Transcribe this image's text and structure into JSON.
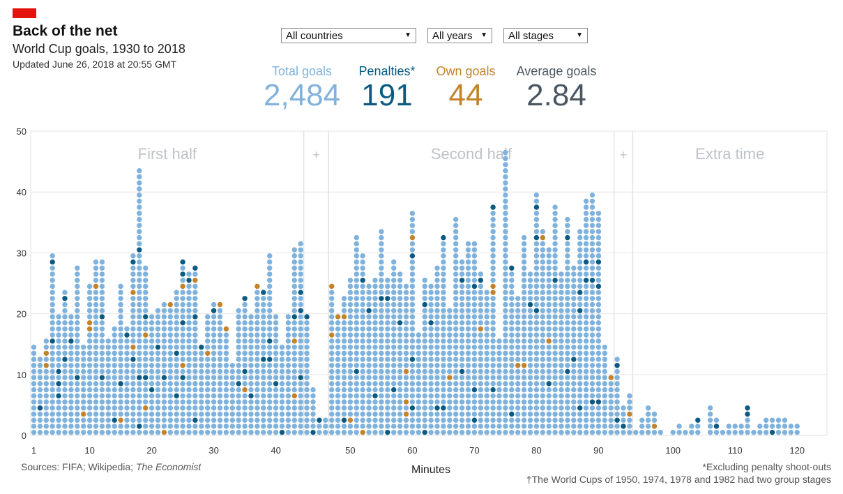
{
  "header": {
    "title": "Back of the net",
    "subtitle": "World Cup goals, 1930 to 2018",
    "updated": "Updated June 26, 2018 at 20:55 GMT"
  },
  "filters": {
    "countries": "All countries",
    "years": "All years",
    "stages": "All stages"
  },
  "stats": {
    "total_label": "Total goals",
    "total_value": "2,484",
    "penalties_label": "Penalties*",
    "penalties_value": "191",
    "own_label": "Own goals",
    "own_value": "44",
    "avg_label": "Average goals",
    "avg_value": "2.84"
  },
  "colors": {
    "regular": "#7fb2dc",
    "penalty": "#0a5a82",
    "own_goal": "#c2832a",
    "brand": "#e3120b"
  },
  "footer": {
    "sources_prefix": "Sources: FIFA; Wikipedia; ",
    "sources_italic": "The Economist",
    "note1": "*Excluding penalty shoot-outs",
    "note2": "†The World Cups of 1950, 1974, 1978 and 1982 had two group stages"
  },
  "chart_data": {
    "type": "scatter",
    "xlabel": "Minutes",
    "ylabel": "",
    "ylim": [
      0,
      50
    ],
    "yticks": [
      0,
      10,
      20,
      30,
      40,
      50
    ],
    "xticks": [
      1,
      10,
      20,
      30,
      40,
      50,
      60,
      70,
      80,
      90,
      100,
      110,
      120
    ],
    "grid": true,
    "sections": [
      {
        "label": "First half",
        "from": 1,
        "to": 45
      },
      {
        "label": "+",
        "from": 45,
        "to": 47
      },
      {
        "label": "Second half",
        "from": 47,
        "to": 91
      },
      {
        "label": "+",
        "from": 91,
        "to": 94
      },
      {
        "label": "Extra time",
        "from": 94,
        "to": 121
      }
    ],
    "goals_per_minute": [
      {
        "minute": "1",
        "total": 15,
        "penalties": [],
        "own_goals": []
      },
      {
        "minute": "2",
        "total": 13,
        "penalties": [
          5
        ],
        "own_goals": []
      },
      {
        "minute": "3",
        "total": 16,
        "penalties": [],
        "own_goals": [
          12,
          14
        ]
      },
      {
        "minute": "4",
        "total": 30,
        "penalties": [
          16,
          29
        ],
        "own_goals": []
      },
      {
        "minute": "5",
        "total": 20,
        "penalties": [
          7,
          9,
          11
        ],
        "own_goals": []
      },
      {
        "minute": "6",
        "total": 24,
        "penalties": [
          13,
          23
        ],
        "own_goals": []
      },
      {
        "minute": "7",
        "total": 20,
        "penalties": [
          16
        ],
        "own_goals": []
      },
      {
        "minute": "8",
        "total": 28,
        "penalties": [
          10
        ],
        "own_goals": []
      },
      {
        "minute": "9",
        "total": 15,
        "penalties": [],
        "own_goals": [
          4
        ]
      },
      {
        "minute": "10",
        "total": 25,
        "penalties": [],
        "own_goals": [
          18,
          19
        ]
      },
      {
        "minute": "11",
        "total": 29,
        "penalties": [],
        "own_goals": [
          25
        ]
      },
      {
        "minute": "12",
        "total": 29,
        "penalties": [
          10,
          20
        ],
        "own_goals": []
      },
      {
        "minute": "13",
        "total": 16,
        "penalties": [],
        "own_goals": []
      },
      {
        "minute": "14",
        "total": 18,
        "penalties": [
          3
        ],
        "own_goals": []
      },
      {
        "minute": "15",
        "total": 25,
        "penalties": [
          9
        ],
        "own_goals": [
          3
        ]
      },
      {
        "minute": "16",
        "total": 18,
        "penalties": [
          17
        ],
        "own_goals": []
      },
      {
        "minute": "17",
        "total": 30,
        "penalties": [
          13,
          29
        ],
        "own_goals": [
          15,
          24
        ]
      },
      {
        "minute": "18",
        "total": 44,
        "penalties": [
          2,
          10,
          31
        ],
        "own_goals": []
      },
      {
        "minute": "19",
        "total": 28,
        "penalties": [
          10,
          20
        ],
        "own_goals": [
          5,
          17
        ]
      },
      {
        "minute": "20",
        "total": 20,
        "penalties": [
          8
        ],
        "own_goals": []
      },
      {
        "minute": "21",
        "total": 21,
        "penalties": [
          15
        ],
        "own_goals": []
      },
      {
        "minute": "22",
        "total": 22,
        "penalties": [
          10
        ],
        "own_goals": [
          1
        ]
      },
      {
        "minute": "23",
        "total": 22,
        "penalties": [],
        "own_goals": [
          22
        ]
      },
      {
        "minute": "24",
        "total": 24,
        "penalties": [
          7,
          14
        ],
        "own_goals": []
      },
      {
        "minute": "25",
        "total": 29,
        "penalties": [
          10,
          19,
          27,
          29
        ],
        "own_goals": [
          12,
          25
        ]
      },
      {
        "minute": "26",
        "total": 27,
        "penalties": [
          26
        ],
        "own_goals": []
      },
      {
        "minute": "27",
        "total": 28,
        "penalties": [
          3,
          20,
          28
        ],
        "own_goals": [
          26
        ]
      },
      {
        "minute": "28",
        "total": 15,
        "penalties": [
          15
        ],
        "own_goals": []
      },
      {
        "minute": "29",
        "total": 20,
        "penalties": [],
        "own_goals": [
          14
        ]
      },
      {
        "minute": "30",
        "total": 22,
        "penalties": [
          21
        ],
        "own_goals": []
      },
      {
        "minute": "31",
        "total": 22,
        "penalties": [],
        "own_goals": [
          22
        ]
      },
      {
        "minute": "32",
        "total": 18,
        "penalties": [],
        "own_goals": [
          18
        ]
      },
      {
        "minute": "33",
        "total": 12,
        "penalties": [],
        "own_goals": []
      },
      {
        "minute": "34",
        "total": 21,
        "penalties": [
          9
        ],
        "own_goals": []
      },
      {
        "minute": "35",
        "total": 23,
        "penalties": [
          11,
          23
        ],
        "own_goals": [
          8
        ]
      },
      {
        "minute": "36",
        "total": 20,
        "penalties": [
          7
        ],
        "own_goals": []
      },
      {
        "minute": "37",
        "total": 25,
        "penalties": [],
        "own_goals": [
          25
        ]
      },
      {
        "minute": "38",
        "total": 24,
        "penalties": [
          13,
          24
        ],
        "own_goals": []
      },
      {
        "minute": "39",
        "total": 30,
        "penalties": [
          13,
          16
        ],
        "own_goals": []
      },
      {
        "minute": "40",
        "total": 20,
        "penalties": [
          9
        ],
        "own_goals": []
      },
      {
        "minute": "41",
        "total": 15,
        "penalties": [
          1
        ],
        "own_goals": []
      },
      {
        "minute": "42",
        "total": 20,
        "penalties": [],
        "own_goals": []
      },
      {
        "minute": "43",
        "total": 31,
        "penalties": [
          20
        ],
        "own_goals": [
          7,
          16
        ]
      },
      {
        "minute": "44",
        "total": 32,
        "penalties": [
          10,
          21,
          24
        ],
        "own_goals": []
      },
      {
        "minute": "45",
        "total": 20,
        "penalties": [
          20
        ],
        "own_goals": []
      },
      {
        "minute": "45+",
        "total": 8,
        "penalties": [
          1
        ],
        "own_goals": []
      },
      {
        "minute": "45++",
        "total": 3,
        "penalties": [
          3
        ],
        "own_goals": []
      },
      {
        "minute": "46",
        "total": 3,
        "penalties": [],
        "own_goals": []
      },
      {
        "minute": "47",
        "total": 25,
        "penalties": [],
        "own_goals": [
          17,
          25
        ]
      },
      {
        "minute": "48",
        "total": 20,
        "penalties": [],
        "own_goals": [
          20
        ]
      },
      {
        "minute": "49",
        "total": 23,
        "penalties": [
          3
        ],
        "own_goals": [
          20
        ]
      },
      {
        "minute": "50",
        "total": 26,
        "penalties": [],
        "own_goals": [
          3
        ]
      },
      {
        "minute": "51",
        "total": 33,
        "penalties": [
          11
        ],
        "own_goals": []
      },
      {
        "minute": "52",
        "total": 30,
        "penalties": [
          26
        ],
        "own_goals": [
          1
        ]
      },
      {
        "minute": "53",
        "total": 25,
        "penalties": [
          21
        ],
        "own_goals": []
      },
      {
        "minute": "54",
        "total": 26,
        "penalties": [
          7
        ],
        "own_goals": []
      },
      {
        "minute": "55",
        "total": 34,
        "penalties": [
          23
        ],
        "own_goals": []
      },
      {
        "minute": "56",
        "total": 26,
        "penalties": [
          1,
          23
        ],
        "own_goals": []
      },
      {
        "minute": "57",
        "total": 29,
        "penalties": [
          8
        ],
        "own_goals": []
      },
      {
        "minute": "58",
        "total": 27,
        "penalties": [
          19
        ],
        "own_goals": []
      },
      {
        "minute": "59",
        "total": 25,
        "penalties": [],
        "own_goals": [
          4,
          6,
          11
        ]
      },
      {
        "minute": "60",
        "total": 37,
        "penalties": [
          5,
          13,
          30
        ],
        "own_goals": [
          33
        ]
      },
      {
        "minute": "61",
        "total": 17,
        "penalties": [],
        "own_goals": []
      },
      {
        "minute": "62",
        "total": 26,
        "penalties": [
          1,
          22
        ],
        "own_goals": []
      },
      {
        "minute": "63",
        "total": 25,
        "penalties": [
          19
        ],
        "own_goals": []
      },
      {
        "minute": "64",
        "total": 28,
        "penalties": [
          5
        ],
        "own_goals": []
      },
      {
        "minute": "65",
        "total": 33,
        "penalties": [
          5,
          33
        ],
        "own_goals": []
      },
      {
        "minute": "66",
        "total": 21,
        "penalties": [],
        "own_goals": [
          10
        ]
      },
      {
        "minute": "67",
        "total": 36,
        "penalties": [],
        "own_goals": []
      },
      {
        "minute": "68",
        "total": 29,
        "penalties": [
          11,
          26
        ],
        "own_goals": []
      },
      {
        "minute": "69",
        "total": 32,
        "penalties": [],
        "own_goals": []
      },
      {
        "minute": "70",
        "total": 32,
        "penalties": [
          3,
          8,
          25
        ],
        "own_goals": []
      },
      {
        "minute": "71",
        "total": 27,
        "penalties": [
          26
        ],
        "own_goals": [
          18
        ]
      },
      {
        "minute": "72",
        "total": 24,
        "penalties": [],
        "own_goals": []
      },
      {
        "minute": "73",
        "total": 38,
        "penalties": [
          8,
          38
        ],
        "own_goals": [
          25,
          24
        ]
      },
      {
        "minute": "74",
        "total": 16,
        "penalties": [],
        "own_goals": []
      },
      {
        "minute": "75",
        "total": 47,
        "penalties": [],
        "own_goals": []
      },
      {
        "minute": "76",
        "total": 28,
        "penalties": [
          4,
          28
        ],
        "own_goals": []
      },
      {
        "minute": "77",
        "total": 23,
        "penalties": [],
        "own_goals": [
          12
        ]
      },
      {
        "minute": "78",
        "total": 33,
        "penalties": [],
        "own_goals": [
          12
        ]
      },
      {
        "minute": "79",
        "total": 27,
        "penalties": [
          22
        ],
        "own_goals": []
      },
      {
        "minute": "80",
        "total": 40,
        "penalties": [
          21,
          33,
          38
        ],
        "own_goals": []
      },
      {
        "minute": "81",
        "total": 34,
        "penalties": [],
        "own_goals": [
          33
        ]
      },
      {
        "minute": "82",
        "total": 31,
        "penalties": [
          9
        ],
        "own_goals": [
          16
        ]
      },
      {
        "minute": "83",
        "total": 38,
        "penalties": [
          26
        ],
        "own_goals": []
      },
      {
        "minute": "84",
        "total": 27,
        "penalties": [],
        "own_goals": []
      },
      {
        "minute": "85",
        "total": 36,
        "penalties": [
          11,
          33
        ],
        "own_goals": []
      },
      {
        "minute": "86",
        "total": 28,
        "penalties": [
          13
        ],
        "own_goals": []
      },
      {
        "minute": "87",
        "total": 34,
        "penalties": [
          5,
          21,
          24
        ],
        "own_goals": []
      },
      {
        "minute": "88",
        "total": 39,
        "penalties": [
          26,
          29
        ],
        "own_goals": []
      },
      {
        "minute": "89",
        "total": 40,
        "penalties": [
          6,
          26
        ],
        "own_goals": []
      },
      {
        "minute": "90",
        "total": 37,
        "penalties": [
          6,
          25,
          29
        ],
        "own_goals": []
      },
      {
        "minute": "90+",
        "total": 15,
        "penalties": [],
        "own_goals": []
      },
      {
        "minute": "90++",
        "total": 10,
        "penalties": [],
        "own_goals": [
          10
        ]
      },
      {
        "minute": "91",
        "total": 13,
        "penalties": [
          3,
          12
        ],
        "own_goals": []
      },
      {
        "minute": "92",
        "total": 5,
        "penalties": [
          2
        ],
        "own_goals": []
      },
      {
        "minute": "93",
        "total": 7,
        "penalties": [],
        "own_goals": [
          4
        ]
      },
      {
        "minute": "94",
        "total": 1,
        "penalties": [],
        "own_goals": []
      },
      {
        "minute": "95",
        "total": 3,
        "penalties": [],
        "own_goals": []
      },
      {
        "minute": "96",
        "total": 5,
        "penalties": [],
        "own_goals": []
      },
      {
        "minute": "97",
        "total": 4,
        "penalties": [],
        "own_goals": [
          2
        ]
      },
      {
        "minute": "98",
        "total": 1,
        "penalties": [],
        "own_goals": []
      },
      {
        "minute": "99",
        "total": 0,
        "penalties": [],
        "own_goals": []
      },
      {
        "minute": "100",
        "total": 1,
        "penalties": [],
        "own_goals": []
      },
      {
        "minute": "101",
        "total": 2,
        "penalties": [],
        "own_goals": []
      },
      {
        "minute": "102",
        "total": 1,
        "penalties": [],
        "own_goals": []
      },
      {
        "minute": "103",
        "total": 2,
        "penalties": [],
        "own_goals": []
      },
      {
        "minute": "104",
        "total": 3,
        "penalties": [
          3
        ],
        "own_goals": []
      },
      {
        "minute": "105",
        "total": 0,
        "penalties": [],
        "own_goals": []
      },
      {
        "minute": "106",
        "total": 5,
        "penalties": [],
        "own_goals": []
      },
      {
        "minute": "107",
        "total": 3,
        "penalties": [
          2
        ],
        "own_goals": []
      },
      {
        "minute": "108",
        "total": 1,
        "penalties": [],
        "own_goals": []
      },
      {
        "minute": "109",
        "total": 2,
        "penalties": [],
        "own_goals": []
      },
      {
        "minute": "110",
        "total": 2,
        "penalties": [],
        "own_goals": []
      },
      {
        "minute": "111",
        "total": 2,
        "penalties": [],
        "own_goals": []
      },
      {
        "minute": "112",
        "total": 5,
        "penalties": [
          4,
          5
        ],
        "own_goals": []
      },
      {
        "minute": "113",
        "total": 1,
        "penalties": [],
        "own_goals": []
      },
      {
        "minute": "114",
        "total": 2,
        "penalties": [],
        "own_goals": []
      },
      {
        "minute": "115",
        "total": 3,
        "penalties": [],
        "own_goals": []
      },
      {
        "minute": "116",
        "total": 3,
        "penalties": [
          1
        ],
        "own_goals": []
      },
      {
        "minute": "117",
        "total": 3,
        "penalties": [],
        "own_goals": []
      },
      {
        "minute": "118",
        "total": 3,
        "penalties": [],
        "own_goals": []
      },
      {
        "minute": "119",
        "total": 2,
        "penalties": [],
        "own_goals": []
      },
      {
        "minute": "120",
        "total": 2,
        "penalties": [],
        "own_goals": []
      }
    ]
  }
}
